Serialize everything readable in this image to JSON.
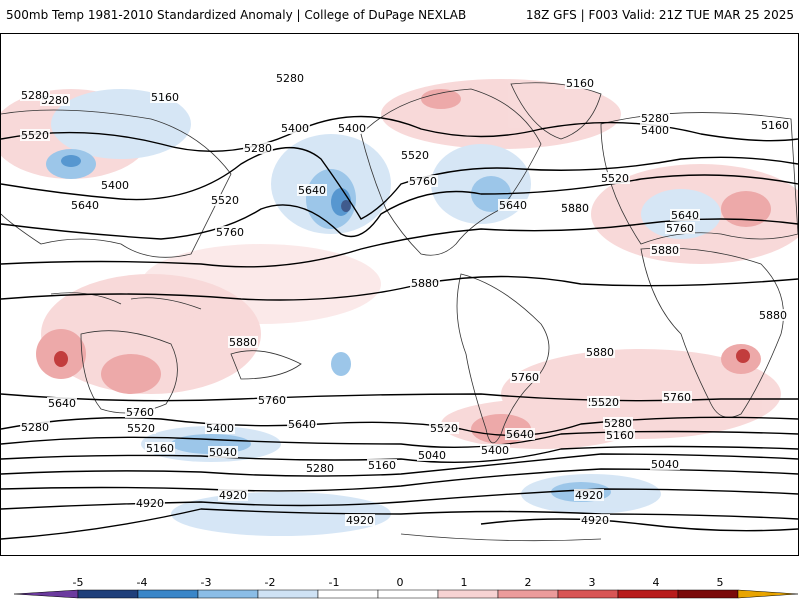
{
  "header": {
    "title": "500mb Temp 1981-2010 Standardized Anomaly | College of DuPage NEXLAB",
    "run_info": "18Z GFS | F003 Valid: 21Z TUE MAR 25 2025"
  },
  "colors": {
    "neg5": "#6b3a9e",
    "neg4": "#1f3f7a",
    "neg3": "#3a86c8",
    "neg2": "#8bbde6",
    "neg1": "#cfe2f4",
    "zero": "#ffffff",
    "pos1": "#f7d3d3",
    "pos2": "#eb9b9b",
    "pos3": "#d85555",
    "pos4": "#b81c1c",
    "pos5": "#7a0a0a",
    "over": "#e8a400",
    "contour": "#000000",
    "coast": "#333333"
  },
  "colorbar": {
    "ticks": [
      "-5",
      "-4",
      "-3",
      "-2",
      "-1",
      "0",
      "1",
      "2",
      "3",
      "4",
      "5"
    ]
  },
  "contour_labels": [
    "5280",
    "5160",
    "5280",
    "5520",
    "5280",
    "5400",
    "5400",
    "5520",
    "5640",
    "5280",
    "5400",
    "5760",
    "5520",
    "5640",
    "5760",
    "5640",
    "5880",
    "5160",
    "5280",
    "5400",
    "5160",
    "5520",
    "5640",
    "5760",
    "5880",
    "5880",
    "5880",
    "5880",
    "5880",
    "5880",
    "5760",
    "5640",
    "5760",
    "5520",
    "5280",
    "5760",
    "5640",
    "5400",
    "5520",
    "5040",
    "5160",
    "5280",
    "5160",
    "5040",
    "5400",
    "5520",
    "5640",
    "5280",
    "5160",
    "5040",
    "4920",
    "4920",
    "4920",
    "4920",
    "4920",
    "5760",
    "5520"
  ]
}
